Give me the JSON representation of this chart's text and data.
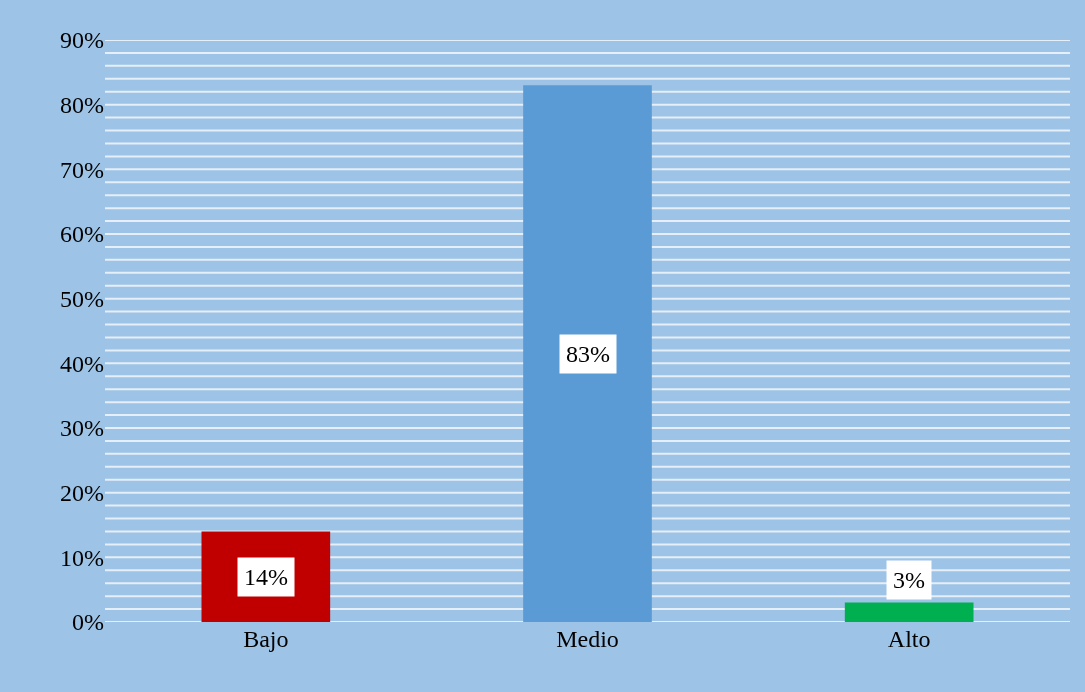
{
  "chart_data": {
    "type": "bar",
    "categories": [
      "Bajo",
      "Medio",
      "Alto"
    ],
    "values": [
      14,
      83,
      3
    ],
    "colors": [
      "#c00000",
      "#5b9bd5",
      "#00b050"
    ],
    "value_labels": [
      "14%",
      "83%",
      "3%"
    ],
    "ylim": [
      0,
      90
    ],
    "yticks": [
      {
        "value": 0,
        "label": "0%"
      },
      {
        "value": 2,
        "label": null
      },
      {
        "value": 4,
        "label": null
      },
      {
        "value": 6,
        "label": null
      },
      {
        "value": 8,
        "label": null
      },
      {
        "value": 10,
        "label": "10%"
      },
      {
        "value": 12,
        "label": null
      },
      {
        "value": 14,
        "label": null
      },
      {
        "value": 16,
        "label": null
      },
      {
        "value": 18,
        "label": null
      },
      {
        "value": 20,
        "label": "20%"
      },
      {
        "value": 22,
        "label": null
      },
      {
        "value": 24,
        "label": null
      },
      {
        "value": 26,
        "label": null
      },
      {
        "value": 28,
        "label": null
      },
      {
        "value": 30,
        "label": "30%"
      },
      {
        "value": 32,
        "label": null
      },
      {
        "value": 34,
        "label": null
      },
      {
        "value": 36,
        "label": null
      },
      {
        "value": 38,
        "label": null
      },
      {
        "value": 40,
        "label": "40%"
      },
      {
        "value": 42,
        "label": null
      },
      {
        "value": 44,
        "label": null
      },
      {
        "value": 46,
        "label": null
      },
      {
        "value": 48,
        "label": null
      },
      {
        "value": 50,
        "label": "50%"
      },
      {
        "value": 52,
        "label": null
      },
      {
        "value": 54,
        "label": null
      },
      {
        "value": 56,
        "label": null
      },
      {
        "value": 58,
        "label": null
      },
      {
        "value": 60,
        "label": "60%"
      },
      {
        "value": 62,
        "label": null
      },
      {
        "value": 64,
        "label": null
      },
      {
        "value": 66,
        "label": null
      },
      {
        "value": 68,
        "label": null
      },
      {
        "value": 70,
        "label": "70%"
      },
      {
        "value": 72,
        "label": null
      },
      {
        "value": 74,
        "label": null
      },
      {
        "value": 76,
        "label": null
      },
      {
        "value": 78,
        "label": null
      },
      {
        "value": 80,
        "label": "80%"
      },
      {
        "value": 82,
        "label": null
      },
      {
        "value": 84,
        "label": null
      },
      {
        "value": 86,
        "label": null
      },
      {
        "value": 88,
        "label": null
      },
      {
        "value": 90,
        "label": "90%"
      }
    ],
    "grid": "y"
  }
}
